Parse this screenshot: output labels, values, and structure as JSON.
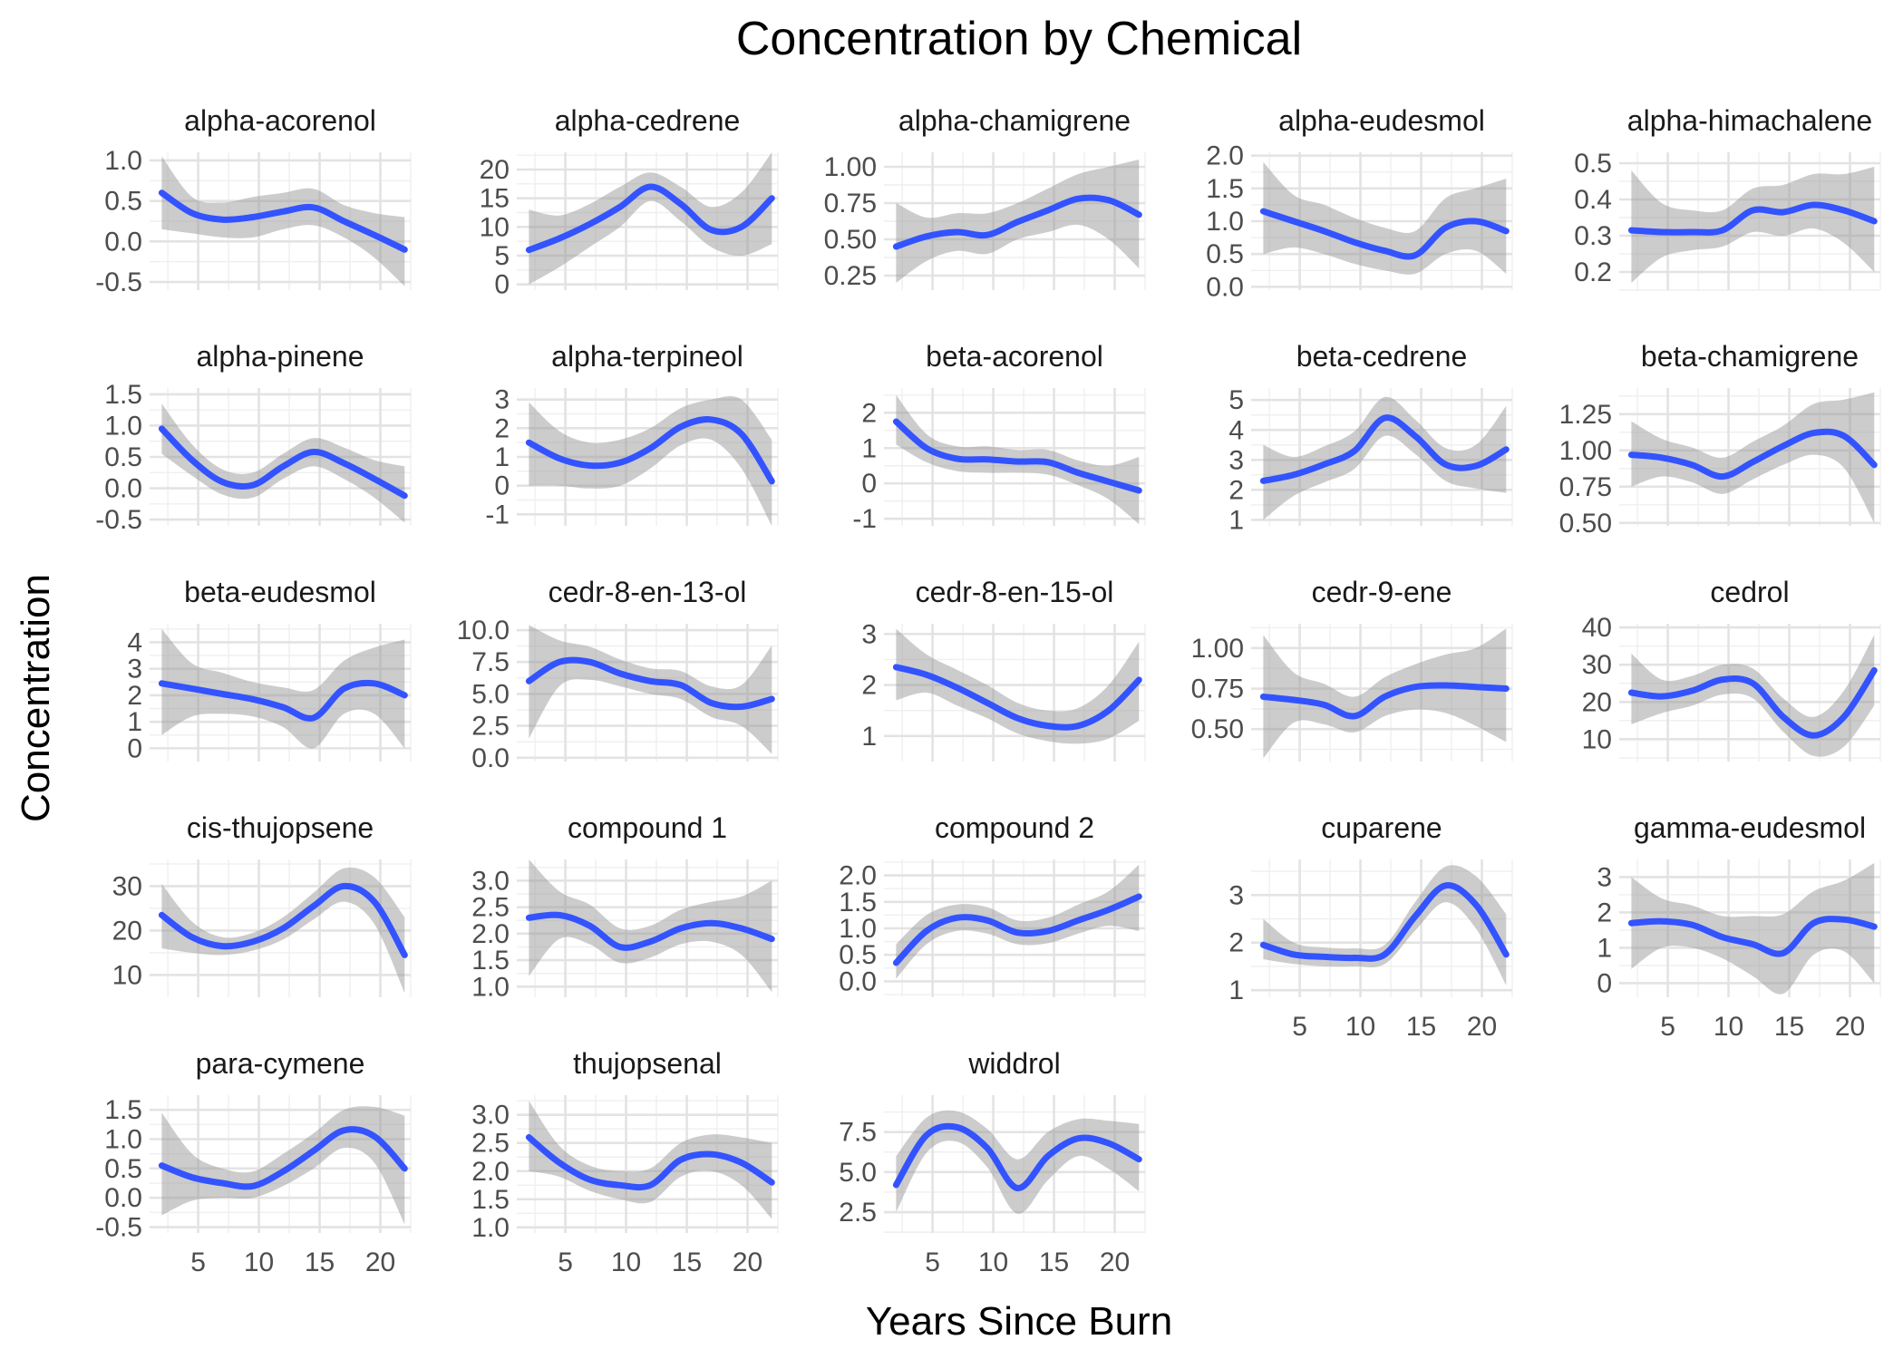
{
  "chart_data": {
    "type": "line",
    "title": "Concentration by Chemical",
    "xlabel": "Years Since Burn",
    "ylabel": "Concentration",
    "xlim": [
      1,
      22.5
    ],
    "xticks": [
      5,
      10,
      15,
      20
    ],
    "x": [
      2,
      4.5,
      7,
      9.5,
      12,
      14.5,
      17,
      19.5,
      22
    ],
    "grid": true,
    "legend": "none",
    "colors": {
      "line": "#3353ff",
      "ribbon": "#999999"
    },
    "panels": [
      {
        "name": "alpha-acorenol",
        "ylim": [
          -0.6,
          1.1
        ],
        "yticks": [
          -0.5,
          0.0,
          0.5,
          1.0
        ],
        "ytick_labels": [
          "-0.5",
          "0.0",
          "0.5",
          "1.0"
        ],
        "y": [
          0.6,
          0.35,
          0.27,
          0.3,
          0.37,
          0.42,
          0.25,
          0.08,
          -0.1
        ],
        "lower": [
          0.15,
          0.1,
          0.05,
          0.05,
          0.15,
          0.2,
          0.05,
          -0.2,
          -0.55
        ],
        "upper": [
          1.05,
          0.55,
          0.48,
          0.55,
          0.6,
          0.65,
          0.45,
          0.35,
          0.3
        ]
      },
      {
        "name": "alpha-cedrene",
        "ylim": [
          -1,
          23
        ],
        "yticks": [
          0,
          5,
          10,
          15,
          20
        ],
        "ytick_labels": [
          "0",
          "5",
          "10",
          "15",
          "20"
        ],
        "y": [
          6,
          8,
          10.5,
          13.5,
          17,
          14,
          9.5,
          10,
          15
        ],
        "lower": [
          0,
          3,
          6.5,
          10,
          14.5,
          11,
          6.5,
          5,
          7
        ],
        "upper": [
          13,
          12,
          14,
          17,
          19.5,
          17,
          13.5,
          16,
          23
        ]
      },
      {
        "name": "alpha-chamigrene",
        "ylim": [
          0.15,
          1.1
        ],
        "yticks": [
          0.25,
          0.5,
          0.75,
          1.0
        ],
        "ytick_labels": [
          "0.25",
          "0.50",
          "0.75",
          "1.00"
        ],
        "y": [
          0.45,
          0.52,
          0.55,
          0.53,
          0.62,
          0.7,
          0.78,
          0.77,
          0.67
        ],
        "lower": [
          0.2,
          0.35,
          0.42,
          0.4,
          0.5,
          0.55,
          0.6,
          0.5,
          0.3
        ],
        "upper": [
          0.75,
          0.65,
          0.68,
          0.68,
          0.75,
          0.85,
          0.95,
          1.0,
          1.05
        ]
      },
      {
        "name": "alpha-eudesmol",
        "ylim": [
          -0.05,
          2.05
        ],
        "yticks": [
          0.0,
          0.5,
          1.0,
          1.5,
          2.0
        ],
        "ytick_labels": [
          "0.0",
          "0.5",
          "1.0",
          "1.5",
          "2.0"
        ],
        "y": [
          1.15,
          1.0,
          0.85,
          0.68,
          0.55,
          0.48,
          0.9,
          1.0,
          0.85
        ],
        "lower": [
          0.5,
          0.6,
          0.5,
          0.35,
          0.25,
          0.2,
          0.5,
          0.55,
          0.2
        ],
        "upper": [
          1.9,
          1.4,
          1.25,
          1.05,
          0.9,
          0.85,
          1.35,
          1.5,
          1.65
        ]
      },
      {
        "name": "alpha-himachalene",
        "ylim": [
          0.15,
          0.53
        ],
        "yticks": [
          0.2,
          0.3,
          0.4,
          0.5
        ],
        "ytick_labels": [
          "0.2",
          "0.3",
          "0.4",
          "0.5"
        ],
        "y": [
          0.315,
          0.31,
          0.31,
          0.315,
          0.37,
          0.365,
          0.385,
          0.37,
          0.34
        ],
        "lower": [
          0.17,
          0.24,
          0.26,
          0.27,
          0.31,
          0.3,
          0.32,
          0.28,
          0.2
        ],
        "upper": [
          0.48,
          0.39,
          0.37,
          0.37,
          0.43,
          0.44,
          0.47,
          0.47,
          0.49
        ]
      },
      {
        "name": "alpha-pinene",
        "ylim": [
          -0.6,
          1.6
        ],
        "yticks": [
          -0.5,
          0.0,
          0.5,
          1.0,
          1.5
        ],
        "ytick_labels": [
          "-0.5",
          "0.0",
          "0.5",
          "1.0",
          "1.5"
        ],
        "y": [
          0.95,
          0.45,
          0.1,
          0.05,
          0.35,
          0.58,
          0.4,
          0.15,
          -0.12
        ],
        "lower": [
          0.55,
          0.2,
          -0.1,
          -0.15,
          0.15,
          0.35,
          0.15,
          -0.15,
          -0.55
        ],
        "upper": [
          1.35,
          0.7,
          0.3,
          0.25,
          0.55,
          0.8,
          0.65,
          0.45,
          0.35
        ]
      },
      {
        "name": "alpha-terpineol",
        "ylim": [
          -1.4,
          3.4
        ],
        "yticks": [
          -1,
          0,
          1,
          2,
          3
        ],
        "ytick_labels": [
          "-1",
          "0",
          "1",
          "2",
          "3"
        ],
        "y": [
          1.5,
          0.95,
          0.7,
          0.8,
          1.3,
          2.05,
          2.3,
          1.8,
          0.15
        ],
        "lower": [
          0.0,
          0.0,
          -0.1,
          0.0,
          0.6,
          1.4,
          1.6,
          0.6,
          -1.4
        ],
        "upper": [
          2.9,
          1.9,
          1.5,
          1.6,
          2.0,
          2.7,
          3.0,
          3.0,
          1.6
        ]
      },
      {
        "name": "beta-acorenol",
        "ylim": [
          -1.2,
          2.7
        ],
        "yticks": [
          -1,
          0,
          1,
          2
        ],
        "ytick_labels": [
          "-1",
          "0",
          "1",
          "2"
        ],
        "y": [
          1.75,
          1.0,
          0.7,
          0.68,
          0.62,
          0.6,
          0.3,
          0.05,
          -0.2
        ],
        "lower": [
          1.1,
          0.6,
          0.35,
          0.3,
          0.3,
          0.25,
          -0.05,
          -0.45,
          -1.15
        ],
        "upper": [
          2.5,
          1.4,
          1.05,
          1.05,
          0.95,
          0.95,
          0.65,
          0.5,
          0.75
        ]
      },
      {
        "name": "beta-cedrene",
        "ylim": [
          0.8,
          5.4
        ],
        "yticks": [
          1,
          2,
          3,
          4,
          5
        ],
        "ytick_labels": [
          "1",
          "2",
          "3",
          "4",
          "5"
        ],
        "y": [
          2.3,
          2.5,
          2.85,
          3.3,
          4.4,
          3.8,
          2.85,
          2.8,
          3.35
        ],
        "lower": [
          1.0,
          1.8,
          2.25,
          2.7,
          3.8,
          3.2,
          2.3,
          2.05,
          1.9
        ],
        "upper": [
          3.5,
          3.1,
          3.45,
          3.95,
          5.1,
          4.35,
          3.4,
          3.5,
          4.8
        ]
      },
      {
        "name": "beta-chamigrene",
        "ylim": [
          0.48,
          1.43
        ],
        "yticks": [
          0.5,
          0.75,
          1.0,
          1.25
        ],
        "ytick_labels": [
          "0.50",
          "0.75",
          "1.00",
          "1.25"
        ],
        "y": [
          0.97,
          0.95,
          0.9,
          0.82,
          0.92,
          1.03,
          1.12,
          1.1,
          0.9
        ],
        "lower": [
          0.75,
          0.82,
          0.78,
          0.7,
          0.8,
          0.9,
          0.97,
          0.88,
          0.5
        ],
        "upper": [
          1.2,
          1.08,
          1.02,
          0.95,
          1.06,
          1.17,
          1.32,
          1.35,
          1.4
        ]
      },
      {
        "name": "beta-eudesmol",
        "ylim": [
          -0.5,
          4.7
        ],
        "yticks": [
          0,
          1,
          2,
          3,
          4
        ],
        "ytick_labels": [
          "0",
          "1",
          "2",
          "3",
          "4"
        ],
        "y": [
          2.45,
          2.25,
          2.05,
          1.85,
          1.55,
          1.15,
          2.25,
          2.45,
          2.0
        ],
        "lower": [
          0.5,
          1.2,
          1.3,
          1.2,
          0.8,
          0.0,
          1.3,
          1.3,
          0.0
        ],
        "upper": [
          4.5,
          3.2,
          2.85,
          2.5,
          2.3,
          2.2,
          3.3,
          3.8,
          4.1
        ]
      },
      {
        "name": "cedr-8-en-13-ol",
        "ylim": [
          -0.3,
          10.5
        ],
        "yticks": [
          0.0,
          2.5,
          5.0,
          7.5,
          10.0
        ],
        "ytick_labels": [
          "0.0",
          "2.5",
          "5.0",
          "7.5",
          "10.0"
        ],
        "y": [
          6.0,
          7.5,
          7.5,
          6.6,
          6.0,
          5.7,
          4.3,
          4.0,
          4.6
        ],
        "lower": [
          1.5,
          5.6,
          6.1,
          5.6,
          5.0,
          4.6,
          3.2,
          2.5,
          0.3
        ],
        "upper": [
          10.4,
          9.2,
          8.7,
          7.7,
          7.0,
          6.8,
          5.6,
          5.7,
          8.8
        ]
      },
      {
        "name": "cedr-8-en-15-ol",
        "ylim": [
          0.5,
          3.2
        ],
        "yticks": [
          1,
          2,
          3
        ],
        "ytick_labels": [
          "1",
          "2",
          "3"
        ],
        "y": [
          2.35,
          2.2,
          1.95,
          1.65,
          1.35,
          1.2,
          1.2,
          1.5,
          2.1
        ],
        "lower": [
          1.7,
          1.85,
          1.6,
          1.35,
          1.05,
          0.9,
          0.85,
          0.95,
          1.3
        ],
        "upper": [
          3.1,
          2.6,
          2.3,
          2.0,
          1.65,
          1.5,
          1.55,
          2.0,
          2.85
        ]
      },
      {
        "name": "cedr-9-ene",
        "ylim": [
          0.3,
          1.15
        ],
        "yticks": [
          0.5,
          0.75,
          1.0
        ],
        "ytick_labels": [
          "0.50",
          "0.75",
          "1.00"
        ],
        "y": [
          0.7,
          0.68,
          0.65,
          0.58,
          0.7,
          0.76,
          0.77,
          0.76,
          0.75
        ],
        "lower": [
          0.32,
          0.54,
          0.53,
          0.48,
          0.58,
          0.62,
          0.6,
          0.52,
          0.42
        ],
        "upper": [
          1.08,
          0.85,
          0.78,
          0.7,
          0.82,
          0.9,
          0.96,
          1.0,
          1.12
        ]
      },
      {
        "name": "cedrol",
        "ylim": [
          4,
          41
        ],
        "yticks": [
          10,
          20,
          30,
          40
        ],
        "ytick_labels": [
          "10",
          "20",
          "30",
          "40"
        ],
        "y": [
          22.5,
          21.5,
          23,
          26,
          25,
          16,
          11,
          16,
          28.5
        ],
        "lower": [
          14,
          17,
          19,
          22,
          21,
          12,
          5.5,
          8,
          19
        ],
        "upper": [
          33,
          26,
          27,
          30,
          29,
          21,
          16,
          23,
          38
        ]
      },
      {
        "name": "cis-thujopsene",
        "ylim": [
          5,
          36
        ],
        "yticks": [
          10,
          20,
          30
        ],
        "ytick_labels": [
          "10",
          "20",
          "30"
        ],
        "y": [
          23.5,
          18.5,
          16.5,
          17.5,
          20.5,
          25.5,
          30,
          26.5,
          14.5
        ],
        "lower": [
          16,
          15,
          14.5,
          15.5,
          18,
          22.5,
          26.5,
          21.5,
          6
        ],
        "upper": [
          30.5,
          22,
          18.5,
          19.5,
          23,
          28.5,
          34,
          32,
          23
        ]
      },
      {
        "name": "compound 1",
        "ylim": [
          0.8,
          3.4
        ],
        "yticks": [
          1.0,
          1.5,
          2.0,
          2.5,
          3.0
        ],
        "ytick_labels": [
          "1.0",
          "1.5",
          "2.0",
          "2.5",
          "3.0"
        ],
        "y": [
          2.3,
          2.35,
          2.15,
          1.75,
          1.85,
          2.1,
          2.2,
          2.1,
          1.9
        ],
        "lower": [
          1.2,
          1.9,
          1.8,
          1.45,
          1.55,
          1.8,
          1.85,
          1.6,
          0.9
        ],
        "upper": [
          3.4,
          2.8,
          2.55,
          2.1,
          2.15,
          2.45,
          2.6,
          2.7,
          3.0
        ]
      },
      {
        "name": "compound 2",
        "ylim": [
          -0.3,
          2.3
        ],
        "yticks": [
          0.0,
          0.5,
          1.0,
          1.5,
          2.0
        ],
        "ytick_labels": [
          "0.0",
          "0.5",
          "1.0",
          "1.5",
          "2.0"
        ],
        "y": [
          0.35,
          0.95,
          1.2,
          1.15,
          0.92,
          0.95,
          1.15,
          1.35,
          1.6
        ],
        "lower": [
          0.05,
          0.7,
          0.95,
          0.9,
          0.7,
          0.72,
          0.9,
          1.05,
          0.95
        ],
        "upper": [
          0.7,
          1.25,
          1.45,
          1.4,
          1.15,
          1.2,
          1.45,
          1.7,
          2.2
        ]
      },
      {
        "name": "cuparene",
        "ylim": [
          0.85,
          3.75
        ],
        "yticks": [
          1,
          2,
          3
        ],
        "ytick_labels": [
          "1",
          "2",
          "3"
        ],
        "y": [
          1.95,
          1.75,
          1.7,
          1.68,
          1.75,
          2.55,
          3.2,
          2.8,
          1.75
        ],
        "lower": [
          1.65,
          1.55,
          1.5,
          1.5,
          1.55,
          2.25,
          2.85,
          2.3,
          1.1
        ],
        "upper": [
          2.5,
          2.0,
          1.9,
          1.88,
          1.95,
          2.85,
          3.6,
          3.4,
          2.6
        ]
      },
      {
        "name": "gamma-eudesmol",
        "ylim": [
          -0.4,
          3.5
        ],
        "yticks": [
          0,
          1,
          2,
          3
        ],
        "ytick_labels": [
          "0",
          "1",
          "2",
          "3"
        ],
        "y": [
          1.7,
          1.75,
          1.65,
          1.3,
          1.1,
          0.85,
          1.7,
          1.8,
          1.6
        ],
        "lower": [
          0.4,
          1.0,
          1.0,
          0.7,
          0.2,
          -0.3,
          0.8,
          0.9,
          0.0
        ],
        "upper": [
          3.0,
          2.4,
          2.2,
          1.9,
          1.9,
          1.95,
          2.6,
          2.9,
          3.4
        ]
      },
      {
        "name": "para-cymene",
        "ylim": [
          -0.6,
          1.75
        ],
        "yticks": [
          -0.5,
          0.0,
          0.5,
          1.0,
          1.5
        ],
        "ytick_labels": [
          "-0.5",
          "0.0",
          "0.5",
          "1.0",
          "1.5"
        ],
        "y": [
          0.55,
          0.35,
          0.25,
          0.2,
          0.45,
          0.8,
          1.15,
          1.05,
          0.5
        ],
        "lower": [
          -0.3,
          -0.05,
          0.0,
          0.0,
          0.2,
          0.5,
          0.85,
          0.6,
          -0.45
        ],
        "upper": [
          1.45,
          0.75,
          0.5,
          0.45,
          0.75,
          1.1,
          1.5,
          1.55,
          1.4
        ]
      },
      {
        "name": "thujopsenal",
        "ylim": [
          0.9,
          3.35
        ],
        "yticks": [
          1.0,
          1.5,
          2.0,
          2.5,
          3.0
        ],
        "ytick_labels": [
          "1.0",
          "1.5",
          "2.0",
          "2.5",
          "3.0"
        ],
        "y": [
          2.6,
          2.15,
          1.85,
          1.75,
          1.75,
          2.2,
          2.3,
          2.15,
          1.8
        ],
        "lower": [
          2.0,
          1.9,
          1.65,
          1.5,
          1.45,
          1.9,
          2.0,
          1.75,
          1.15
        ],
        "upper": [
          3.25,
          2.45,
          2.1,
          2.0,
          2.05,
          2.5,
          2.65,
          2.6,
          2.5
        ]
      },
      {
        "name": "widdrol",
        "ylim": [
          1.2,
          9.8
        ],
        "yticks": [
          2.5,
          5.0,
          7.5
        ],
        "ytick_labels": [
          "2.5",
          "5.0",
          "7.5"
        ],
        "y": [
          4.2,
          7.3,
          7.8,
          6.5,
          4.0,
          6.0,
          7.1,
          6.8,
          5.8
        ],
        "lower": [
          2.5,
          6.2,
          6.9,
          5.3,
          2.4,
          4.5,
          6.0,
          5.2,
          3.8
        ],
        "upper": [
          6.0,
          8.4,
          8.8,
          7.7,
          5.8,
          7.5,
          8.3,
          8.2,
          8.0
        ]
      }
    ]
  }
}
